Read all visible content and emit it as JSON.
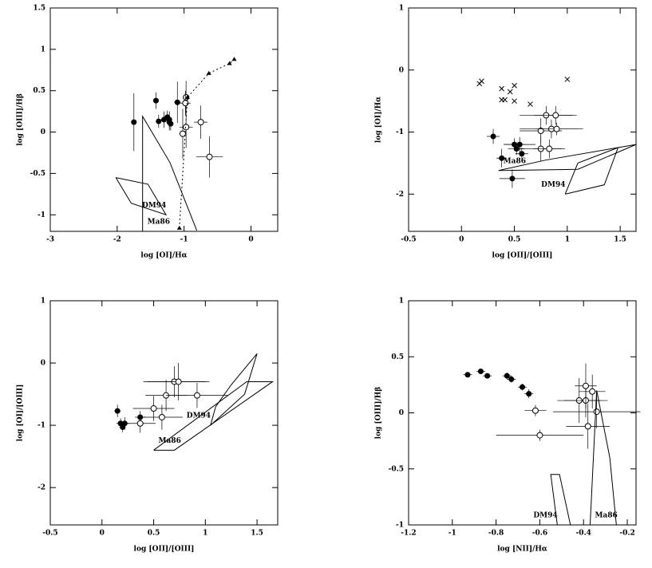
{
  "chart_data": [
    {
      "type": "scatter",
      "xlabel": "log [OI]/Hα",
      "ylabel": "log [OIII]/Hβ",
      "xlim": [
        -3,
        0.4
      ],
      "ylim": [
        -1.2,
        1.5
      ],
      "xticks": [
        -3,
        -2,
        -1,
        0
      ],
      "yticks": [
        -1,
        -0.5,
        0,
        0.5,
        1,
        1.5
      ],
      "series": [
        {
          "marker": "filled-circle",
          "color": "#000000",
          "x": [
            -1.75,
            -1.42,
            -1.38,
            -1.3,
            -1.25,
            -1.22,
            -1.2,
            -1.1,
            -1.22
          ],
          "y": [
            0.12,
            0.38,
            0.13,
            0.15,
            0.18,
            0.15,
            0.1,
            0.36,
            0.12
          ],
          "xerr": [
            0.03,
            0.04,
            0.04,
            0.05,
            0.03,
            0.04,
            0.04,
            0.05,
            0.04
          ],
          "yerr": [
            0.35,
            0.1,
            0.08,
            0.1,
            0.08,
            0.1,
            0.08,
            0.25,
            0.1
          ]
        },
        {
          "marker": "open-circle",
          "color": "#000000",
          "x": [
            -0.97,
            -0.98,
            -1.02,
            -0.97,
            -0.75,
            -0.62
          ],
          "y": [
            0.42,
            0.35,
            -0.02,
            0.06,
            0.12,
            -0.3
          ],
          "xerr": [
            0.05,
            0.08,
            0.05,
            0.1,
            0.1,
            0.2
          ],
          "yerr": [
            0.2,
            0.15,
            0.3,
            0.25,
            0.2,
            0.25
          ]
        },
        {
          "marker": "triangle",
          "line": "dotted",
          "color": "#000000",
          "x": [
            -1.07,
            -0.95,
            -0.63,
            -0.32,
            -0.25
          ],
          "y": [
            -1.16,
            0.42,
            0.71,
            0.83,
            0.88
          ]
        },
        {
          "name": "Ma86",
          "line": "solid",
          "color": "#000000",
          "x": [
            -1.62,
            -1.62,
            -1.21,
            -0.81
          ],
          "y": [
            -1.2,
            0.19,
            -0.37,
            -1.19
          ]
        },
        {
          "name": "DM94",
          "line": "solid",
          "color": "#000000",
          "x": [
            -2.02,
            -1.54,
            -1.27,
            -1.79,
            -2.02
          ],
          "y": [
            -0.55,
            -0.63,
            -1.0,
            -0.86,
            -0.55
          ]
        }
      ]
    },
    {
      "type": "scatter",
      "xlabel": "log [OII]/[OIII]",
      "ylabel": "log [OI]/Hα",
      "xlim": [
        -0.5,
        1.65
      ],
      "ylim": [
        -2.6,
        1
      ],
      "xticks": [
        -0.5,
        0,
        0.5,
        1,
        1.5
      ],
      "yticks": [
        -2,
        -1,
        0,
        1
      ],
      "series": [
        {
          "marker": "cross",
          "color": "#000000",
          "x": [
            0.17,
            0.19,
            0.38,
            0.38,
            0.41,
            0.46,
            0.5,
            0.5,
            0.65,
            1.0
          ],
          "y": [
            -0.22,
            -0.18,
            -0.3,
            -0.48,
            -0.48,
            -0.35,
            -0.25,
            -0.5,
            -0.55,
            -0.15
          ]
        },
        {
          "marker": "filled-circle",
          "color": "#000000",
          "x": [
            0.3,
            0.38,
            0.5,
            0.52,
            0.55,
            0.57,
            0.48
          ],
          "y": [
            -1.07,
            -1.42,
            -1.2,
            -1.27,
            -1.2,
            -1.35,
            -1.75
          ],
          "xerr": [
            0.06,
            0.05,
            0.1,
            0.08,
            0.15,
            0.06,
            0.12
          ],
          "yerr": [
            0.12,
            0.15,
            0.1,
            0.1,
            0.12,
            0.1,
            0.15
          ]
        },
        {
          "marker": "open-circle",
          "color": "#000000",
          "x": [
            0.8,
            0.89,
            0.75,
            0.85,
            0.9,
            0.75,
            0.83
          ],
          "y": [
            -0.73,
            -0.73,
            -0.98,
            -0.95,
            -0.95,
            -1.27,
            -1.27
          ],
          "xerr": [
            0.25,
            0.2,
            0.2,
            0.3,
            0.2,
            0.2,
            0.15
          ],
          "yerr": [
            0.15,
            0.15,
            0.2,
            0.15,
            0.1,
            0.2,
            0.15
          ]
        },
        {
          "name": "Ma86",
          "line": "solid",
          "color": "#000000",
          "x": [
            0.35,
            0.8,
            1.48,
            1.65,
            1.1,
            0.35
          ],
          "y": [
            -1.62,
            -1.45,
            -1.25,
            -1.2,
            -1.6,
            -1.62
          ]
        },
        {
          "name": "DM94",
          "line": "solid",
          "color": "#000000",
          "x": [
            0.98,
            1.1,
            1.48,
            1.35,
            0.98
          ],
          "y": [
            -2.0,
            -1.5,
            -1.25,
            -1.85,
            -2.0
          ]
        }
      ]
    },
    {
      "type": "scatter",
      "xlabel": "log [OII]/[OIII]",
      "ylabel": "log [OI]/[OIII]",
      "xlim": [
        -0.5,
        1.7
      ],
      "ylim": [
        -2.6,
        1
      ],
      "xticks": [
        -0.5,
        0,
        0.5,
        1,
        1.5
      ],
      "yticks": [
        -2,
        -1,
        0,
        1
      ],
      "series": [
        {
          "marker": "filled-circle",
          "color": "#000000",
          "x": [
            0.15,
            0.18,
            0.2,
            0.22,
            0.37
          ],
          "y": [
            -0.77,
            -0.97,
            -1.03,
            -0.97,
            -0.87
          ],
          "xerr": [
            0.03,
            0.04,
            0.03,
            0.05,
            0.05
          ],
          "yerr": [
            0.1,
            0.08,
            0.08,
            0.1,
            0.1
          ]
        },
        {
          "marker": "open-circle",
          "color": "#000000",
          "x": [
            0.37,
            0.5,
            0.58,
            0.7,
            0.74,
            0.62,
            0.92
          ],
          "y": [
            -0.97,
            -0.73,
            -0.87,
            -0.3,
            -0.3,
            -0.52,
            -0.52
          ],
          "xerr": [
            0.15,
            0.2,
            0.2,
            0.3,
            0.3,
            0.2,
            0.3
          ],
          "yerr": [
            0.15,
            0.2,
            0.2,
            0.25,
            0.3,
            0.25,
            0.2
          ]
        },
        {
          "name": "Ma86",
          "line": "solid",
          "color": "#000000",
          "x": [
            0.5,
            0.7,
            1.65,
            1.4,
            0.5
          ],
          "y": [
            -1.4,
            -1.4,
            -0.3,
            -0.3,
            -1.4
          ]
        },
        {
          "name": "DM94",
          "line": "solid",
          "color": "#000000",
          "x": [
            1.05,
            1.1,
            1.25,
            1.5,
            1.38,
            1.05
          ],
          "y": [
            -1.0,
            -0.7,
            -0.35,
            0.15,
            -0.5,
            -1.0
          ]
        }
      ]
    },
    {
      "type": "scatter",
      "xlabel": "log [NII]/Hα",
      "ylabel": "log [OIII]/Hβ",
      "xlim": [
        -1.2,
        -0.16
      ],
      "ylim": [
        -1,
        1
      ],
      "xticks": [
        -1.2,
        -1,
        -0.8,
        -0.6,
        -0.4,
        -0.2
      ],
      "yticks": [
        -1,
        -0.5,
        0,
        0.5,
        1
      ],
      "series": [
        {
          "marker": "filled-circle",
          "color": "#000000",
          "x": [
            -0.93,
            -0.87,
            -0.84,
            -0.75,
            -0.73,
            -0.68,
            -0.65
          ],
          "y": [
            0.34,
            0.37,
            0.33,
            0.33,
            0.3,
            0.23,
            0.17
          ],
          "xerr": [
            0.02,
            0.02,
            0.02,
            0.02,
            0.02,
            0.02,
            0.02
          ],
          "yerr": [
            0.02,
            0.02,
            0.02,
            0.03,
            0.03,
            0.03,
            0.04
          ]
        },
        {
          "marker": "open-circle",
          "color": "#000000",
          "x": [
            -0.62,
            -0.6,
            -0.42,
            -0.39,
            -0.39,
            -0.36,
            -0.34,
            -0.38
          ],
          "y": [
            0.02,
            -0.2,
            0.11,
            0.11,
            0.24,
            0.19,
            0.01,
            -0.12
          ],
          "xerr": [
            0.05,
            0.2,
            0.1,
            0.1,
            0.05,
            0.06,
            0.2,
            0.1
          ],
          "yerr": [
            0.05,
            0.05,
            0.2,
            0.15,
            0.2,
            0.15,
            0.15,
            0.2
          ]
        },
        {
          "name": "Ma86",
          "line": "solid",
          "color": "#000000",
          "x": [
            -0.37,
            -0.34,
            -0.28,
            -0.25
          ],
          "y": [
            -1,
            0.2,
            -0.4,
            -1
          ]
        },
        {
          "name": "DM94",
          "line": "solid",
          "color": "#000000",
          "x": [
            -0.52,
            -0.55,
            -0.51,
            -0.46
          ],
          "y": [
            -1,
            -0.55,
            -0.55,
            -1
          ]
        }
      ]
    }
  ]
}
